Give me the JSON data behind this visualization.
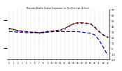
{
  "title": "Milwaukee Weather Outdoor Temperature (vs) Dew Point (Last 24 Hours)",
  "temp": [
    36,
    34,
    32,
    31,
    30,
    29,
    29,
    28,
    29,
    30,
    31,
    32,
    33,
    36,
    40,
    44,
    46,
    46,
    45,
    44,
    38,
    30,
    24,
    20
  ],
  "dewpt": [
    30,
    30,
    29,
    29,
    28,
    28,
    28,
    28,
    28,
    29,
    30,
    30,
    30,
    30,
    30,
    30,
    30,
    29,
    28,
    27,
    24,
    15,
    2,
    -12
  ],
  "heat": [
    36,
    34,
    32,
    31,
    30,
    29,
    29,
    28,
    29,
    30,
    31,
    32,
    33,
    36,
    40,
    44,
    46,
    46,
    45,
    44,
    38,
    30,
    24,
    20
  ],
  "hours": [
    0,
    1,
    2,
    3,
    4,
    5,
    6,
    7,
    8,
    9,
    10,
    11,
    12,
    13,
    14,
    15,
    16,
    17,
    18,
    19,
    20,
    21,
    22,
    23
  ],
  "temp_color": "#cc0000",
  "dewpt_color": "#0000cc",
  "heat_color": "#000000",
  "bg_color": "#ffffff",
  "ylim": [
    -20,
    70
  ],
  "yticks": [
    70,
    60,
    50,
    40,
    30,
    20,
    10,
    0,
    -10,
    -20
  ],
  "ytick_labels": [
    "70",
    "60",
    "50",
    "40",
    "30",
    "20",
    "10",
    "0",
    "-10",
    "-20"
  ],
  "grid_color": "#999999"
}
